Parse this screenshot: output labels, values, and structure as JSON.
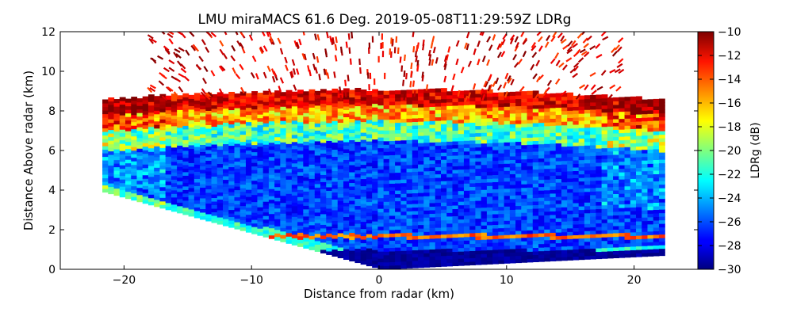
{
  "chart_data": {
    "type": "heatmap",
    "title": "LMU miraMACS 61.6 Deg. 2019-05-08T11:29:59Z  LDRg",
    "xlabel": "Distance from radar (km)",
    "ylabel": "Distance Above radar  (km)",
    "xlim": [
      -25,
      25
    ],
    "ylim": [
      0,
      12
    ],
    "x_ticks": [
      -20,
      -10,
      0,
      10,
      20
    ],
    "x_tick_labels": [
      "−20",
      "−10",
      "0",
      "10",
      "20"
    ],
    "y_ticks": [
      0,
      2,
      4,
      6,
      8,
      10,
      12
    ],
    "y_tick_labels": [
      "0",
      "2",
      "4",
      "6",
      "8",
      "10",
      "12"
    ],
    "colorbar": {
      "label": "LDRg (dB)",
      "range": [
        -30,
        -10
      ],
      "ticks": [
        -30,
        -28,
        -26,
        -24,
        -22,
        -20,
        -18,
        -16,
        -14,
        -12,
        -10
      ],
      "tick_labels": [
        "−30",
        "−28",
        "−26",
        "−24",
        "−22",
        "−20",
        "−18",
        "−16",
        "−14",
        "−12",
        "−10"
      ],
      "colormap": "jet"
    },
    "scan": {
      "elevation_deg": 61.6,
      "left_edge_km": [
        -21.7,
        3.9
      ],
      "right_edge_km": [
        22.0,
        0.7
      ],
      "layers": [
        {
          "name": "low-level band",
          "y_top_km": 0.9,
          "ldr_db": -30
        },
        {
          "name": "bright line",
          "y_km": 1.6,
          "ldr_db": -16
        },
        {
          "name": "interior",
          "y_range_km": [
            1.8,
            6.5
          ],
          "ldr_db": -27
        },
        {
          "name": "mid transition",
          "y_range_km": [
            6.0,
            7.5
          ],
          "ldr_db": -20
        },
        {
          "name": "cloud top",
          "y_range_km": [
            7.2,
            8.8
          ],
          "ldr_db": -12
        },
        {
          "name": "sparse echoes",
          "y_range_km": [
            8.8,
            12
          ],
          "ldr_db": -10
        }
      ]
    }
  }
}
